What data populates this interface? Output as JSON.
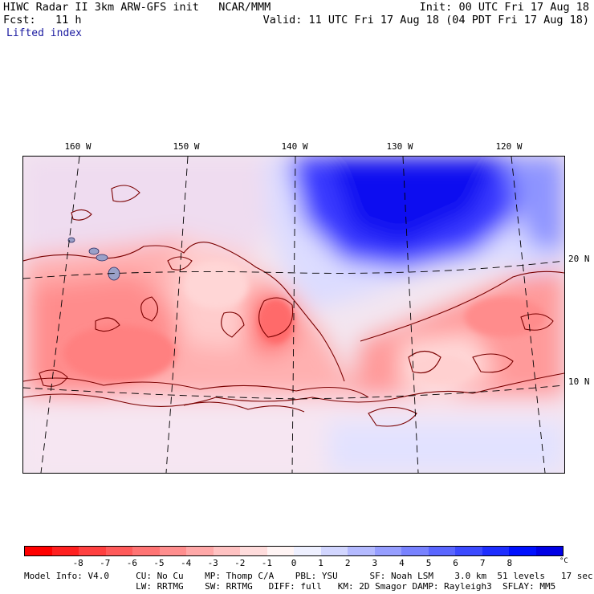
{
  "header": {
    "title": "HIWC Radar II 3km ARW-GFS init   NCAR/MMM",
    "init": "Init: 00 UTC Fri 17 Aug 18",
    "fcst": "Fcst:   11 h",
    "valid": "Valid: 11 UTC Fri 17 Aug 18 (04 PDT Fri 17 Aug 18)",
    "field": "Lifted index"
  },
  "map": {
    "lon_labels": [
      "160 W",
      "150 W",
      "140 W",
      "130 W",
      "120 W"
    ],
    "lat_labels": [
      "20 N",
      "10 N"
    ]
  },
  "colorbar": {
    "colors": [
      "#ff0000",
      "#ff2020",
      "#ff4040",
      "#ff5a5a",
      "#ff7474",
      "#ff8e8e",
      "#ffa8a8",
      "#ffc2c2",
      "#ffdcdc",
      "#fff4f4",
      "#eef0ff",
      "#d2d6ff",
      "#b4baff",
      "#969eff",
      "#7882ff",
      "#5a66ff",
      "#3c4aff",
      "#1e2eff",
      "#0010ff",
      "#0000e6"
    ],
    "ticks": [
      "-8",
      "-7",
      "-6",
      "-5",
      "-4",
      "-3",
      "-2",
      "-1",
      "0",
      "1",
      "2",
      "3",
      "4",
      "5",
      "6",
      "7",
      "8"
    ],
    "unit": "°C"
  },
  "model_info": {
    "line1": "Model Info: V4.0     CU: No Cu    MP: Thomp C/A    PBL: YSU      SF: Noah LSM    3.0 km  51 levels   17 sec",
    "line2": "                     LW: RRTMG    SW: RRTMG   DIFF: full   KM: 2D Smagor DAMP: Rayleigh3  SFLAY: MM5"
  }
}
